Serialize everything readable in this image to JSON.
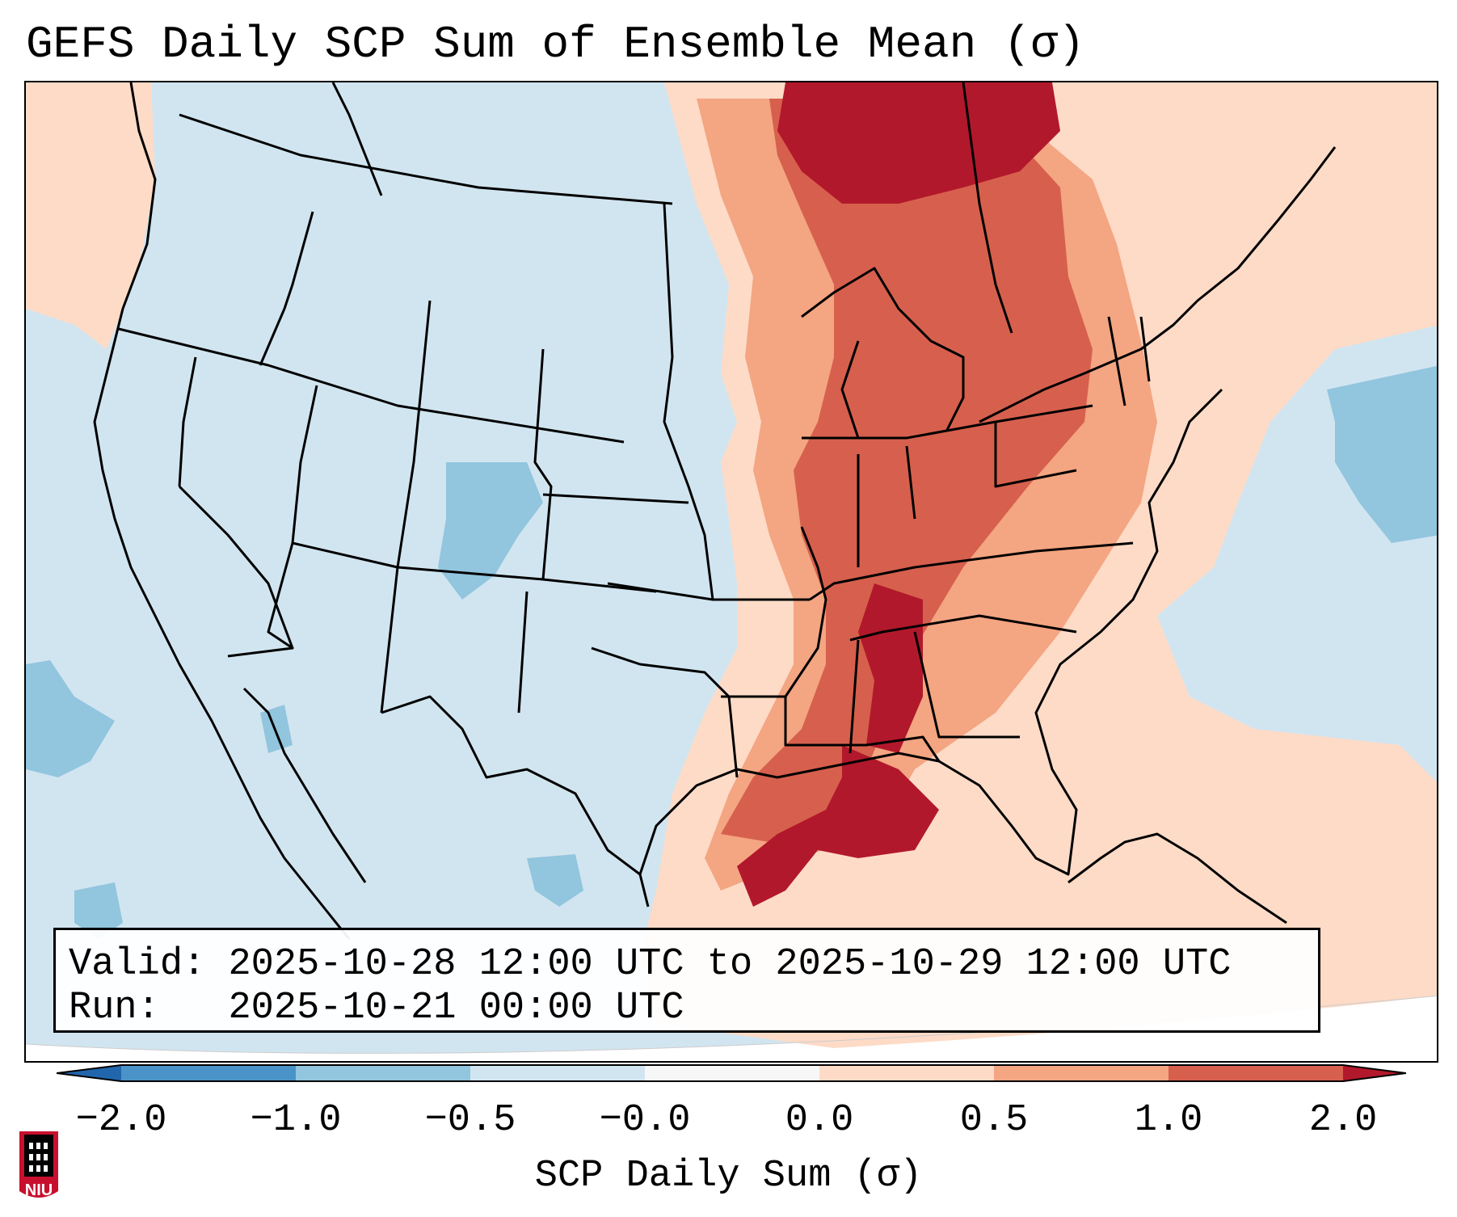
{
  "title": "GEFS Daily SCP Sum of Ensemble Mean (σ)",
  "info": {
    "valid_label": "Valid:",
    "valid_value": "2025-10-28 12:00 UTC to 2025-10-29 12:00 UTC",
    "run_label": "Run:  ",
    "run_value": "2025-10-21 00:00 UTC"
  },
  "colorbar": {
    "label": "SCP Daily Sum (σ)",
    "ticks": [
      "−2.0",
      "−1.0",
      "−0.5",
      "−0.0",
      "0.0",
      "0.5",
      "1.0",
      "2.0"
    ],
    "colors": [
      "#4a93c8",
      "#92c5de",
      "#d1e5f0",
      "#f7f7f7",
      "#fddbc7",
      "#f4a582",
      "#d6604d",
      "#b2182b"
    ],
    "extend_low_color": "#2166ac",
    "extend_high_color": "#b2182b"
  },
  "map": {
    "ocean_color": "#d1e5f0",
    "land_color": "#d1e5f0",
    "border_color": "#000000"
  },
  "logo": {
    "text": "NIU",
    "colors": {
      "shield": "#c8102e",
      "tower": "#000000"
    }
  }
}
